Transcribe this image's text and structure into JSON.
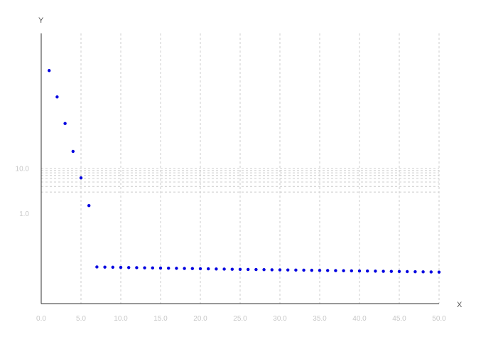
{
  "chart_data": {
    "type": "scatter",
    "title": "",
    "xlabel": "X",
    "ylabel": "Y",
    "xlim": [
      0,
      50
    ],
    "y_scale": "log",
    "grid": {
      "x": true,
      "y": true
    },
    "legend": "none",
    "x_ticks": [
      {
        "value": 0,
        "label": "0.0"
      },
      {
        "value": 5,
        "label": "5.0"
      },
      {
        "value": 10,
        "label": "10.0"
      },
      {
        "value": 15,
        "label": "15.0"
      },
      {
        "value": 20,
        "label": "20.0"
      },
      {
        "value": 25,
        "label": "25.0"
      },
      {
        "value": 30,
        "label": "30.0"
      },
      {
        "value": 35,
        "label": "35.0"
      },
      {
        "value": 40,
        "label": "40.0"
      },
      {
        "value": 45,
        "label": "45.0"
      },
      {
        "value": 50,
        "label": "50.0"
      }
    ],
    "y_ticks": [
      {
        "value": 1,
        "label": "1.0"
      },
      {
        "value": 10,
        "label": "10.0"
      }
    ],
    "y_minor_gridlines": [
      3,
      4,
      5,
      6,
      7,
      8,
      9
    ],
    "series": [
      {
        "color": "#0000e0",
        "x": [
          1,
          2,
          3,
          4,
          5,
          6,
          7,
          8,
          9,
          10,
          11,
          12,
          13,
          14,
          15,
          16,
          17,
          18,
          19,
          20,
          21,
          22,
          23,
          24,
          25,
          26,
          27,
          28,
          29,
          30,
          31,
          32,
          33,
          34,
          35,
          36,
          37,
          38,
          39,
          40,
          41,
          42,
          43,
          44,
          45,
          46,
          47,
          48,
          49,
          50
        ],
        "y": [
          1500,
          390,
          100,
          24,
          6.2,
          1.5,
          0.065,
          0.0645,
          0.064,
          0.0635,
          0.063,
          0.0626,
          0.0622,
          0.0618,
          0.0614,
          0.061,
          0.0606,
          0.0602,
          0.0598,
          0.0594,
          0.059,
          0.0586,
          0.0582,
          0.0578,
          0.0575,
          0.0572,
          0.0569,
          0.0566,
          0.0563,
          0.056,
          0.0557,
          0.0554,
          0.0551,
          0.0548,
          0.0545,
          0.0542,
          0.0539,
          0.0536,
          0.0533,
          0.053,
          0.0527,
          0.0524,
          0.0521,
          0.0518,
          0.0515,
          0.0512,
          0.0509,
          0.0506,
          0.0503,
          0.05
        ]
      }
    ]
  }
}
